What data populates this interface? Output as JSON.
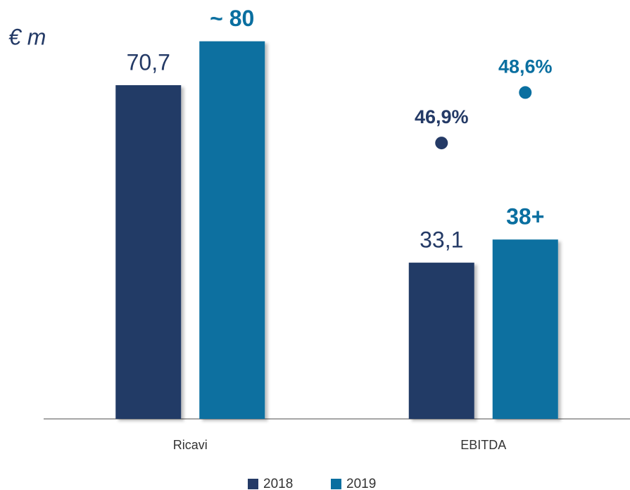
{
  "chart_data": {
    "type": "bar",
    "unit_label": "€ m",
    "categories": [
      "Ricavi",
      "EBITDA"
    ],
    "series": [
      {
        "name": "2018",
        "color": "#243a66",
        "values": [
          70.7,
          33.1
        ],
        "value_labels": [
          "70,7",
          "33,1"
        ]
      },
      {
        "name": "2019",
        "color": "#0a6fa0",
        "values": [
          80,
          38
        ],
        "value_labels": [
          "~ 80",
          "38+"
        ]
      }
    ],
    "ylim": [
      0,
      88
    ],
    "margins": {
      "values": [
        46.9,
        48.6
      ],
      "value_labels": [
        "46,9%",
        "48,6%"
      ],
      "axis": "y2"
    },
    "y2lim": [
      37.6,
      51.6
    ],
    "grid": false,
    "legend": "bottom"
  }
}
